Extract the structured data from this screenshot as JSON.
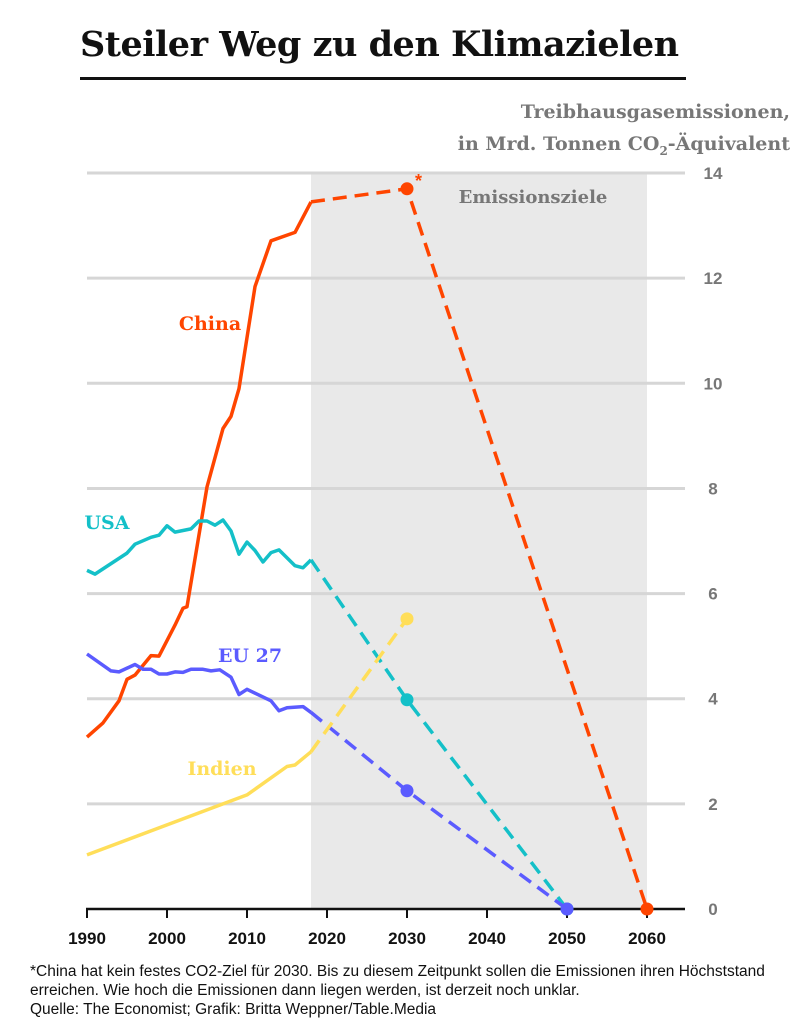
{
  "title": "Steiler Weg zu den Klimazielen",
  "unit_line1": "Treibhausgasemissionen,",
  "unit_line2_pre": "in Mrd. Tonnen CO",
  "unit_line2_sub": "2",
  "unit_line2_post": "-Äquivalent",
  "footnote": "*China hat kein festes CO2-Ziel für 2030. Bis zu diesem Zeitpunkt sollen die Emissionen ihren Höchststand erreichen. Wie hoch die Emissionen dann liegen werden, ist derzeit noch unklar.",
  "source": "Quelle: The Economist; Grafik: Britta Weppner/Table.Media",
  "chart_data": {
    "type": "line",
    "xlim": [
      1990,
      2065
    ],
    "ylim": [
      0,
      14
    ],
    "x_ticks": [
      1990,
      2000,
      2010,
      2020,
      2030,
      2040,
      2050,
      2060
    ],
    "y_ticks": [
      0,
      2,
      4,
      6,
      8,
      10,
      12,
      14
    ],
    "grid": true,
    "shaded_region": {
      "from": 2018,
      "to": 2060,
      "label": "Emissionsziele",
      "color": "#e9e9e9"
    },
    "series": [
      {
        "name": "China",
        "color": "#ff4500",
        "footnote_mark": "*",
        "values": [
          [
            1990,
            3.27
          ],
          [
            1992,
            3.54
          ],
          [
            1994,
            3.96
          ],
          [
            1995,
            4.37
          ],
          [
            1996,
            4.45
          ],
          [
            1998,
            4.82
          ],
          [
            1999,
            4.81
          ],
          [
            2001,
            5.4
          ],
          [
            2002,
            5.72
          ],
          [
            2002.5,
            5.75
          ],
          [
            2005,
            8.03
          ],
          [
            2007,
            9.14
          ],
          [
            2008,
            9.37
          ],
          [
            2009,
            9.9
          ],
          [
            2011,
            11.84
          ],
          [
            2013,
            12.71
          ],
          [
            2016,
            12.87
          ],
          [
            2018,
            13.45
          ]
        ],
        "targets": [
          [
            2018,
            13.45
          ],
          [
            2030,
            13.7
          ],
          [
            2060,
            0
          ]
        ]
      },
      {
        "name": "USA",
        "color": "#14c0c8",
        "values": [
          [
            1990,
            6.44
          ],
          [
            1991,
            6.37
          ],
          [
            1995,
            6.77
          ],
          [
            1996,
            6.94
          ],
          [
            1998,
            7.07
          ],
          [
            1999,
            7.11
          ],
          [
            2000,
            7.29
          ],
          [
            2001,
            7.17
          ],
          [
            2003,
            7.23
          ],
          [
            2004,
            7.38
          ],
          [
            2005,
            7.38
          ],
          [
            2006,
            7.3
          ],
          [
            2007,
            7.4
          ],
          [
            2008,
            7.19
          ],
          [
            2009,
            6.75
          ],
          [
            2010,
            6.98
          ],
          [
            2011,
            6.82
          ],
          [
            2012,
            6.6
          ],
          [
            2013,
            6.78
          ],
          [
            2014,
            6.83
          ],
          [
            2016,
            6.53
          ],
          [
            2017,
            6.49
          ],
          [
            2018,
            6.64
          ]
        ],
        "targets": [
          [
            2018,
            6.64
          ],
          [
            2030,
            3.98
          ],
          [
            2050,
            0
          ]
        ]
      },
      {
        "name": "EU 27",
        "color": "#5b5bff",
        "values": [
          [
            1990,
            4.85
          ],
          [
            1993,
            4.53
          ],
          [
            1994,
            4.51
          ],
          [
            1996,
            4.65
          ],
          [
            1997,
            4.56
          ],
          [
            1998,
            4.56
          ],
          [
            1999,
            4.47
          ],
          [
            2000,
            4.47
          ],
          [
            2001,
            4.51
          ],
          [
            2002,
            4.5
          ],
          [
            2003,
            4.56
          ],
          [
            2004.5,
            4.56
          ],
          [
            2005.5,
            4.53
          ],
          [
            2006.6,
            4.55
          ],
          [
            2008,
            4.41
          ],
          [
            2009,
            4.08
          ],
          [
            2010,
            4.18
          ],
          [
            2013,
            3.96
          ],
          [
            2014,
            3.77
          ],
          [
            2015,
            3.83
          ],
          [
            2017,
            3.85
          ],
          [
            2018,
            3.74
          ]
        ],
        "targets": [
          [
            2018,
            3.74
          ],
          [
            2030,
            2.25
          ],
          [
            2050,
            0
          ]
        ]
      },
      {
        "name": "Indien",
        "color": "#ffde59",
        "values": [
          [
            1990,
            1.03
          ],
          [
            2010,
            2.17
          ],
          [
            2015,
            2.71
          ],
          [
            2016,
            2.74
          ],
          [
            2018,
            2.99
          ]
        ],
        "targets": [
          [
            2018,
            2.99
          ],
          [
            2030,
            5.52
          ]
        ]
      }
    ]
  }
}
